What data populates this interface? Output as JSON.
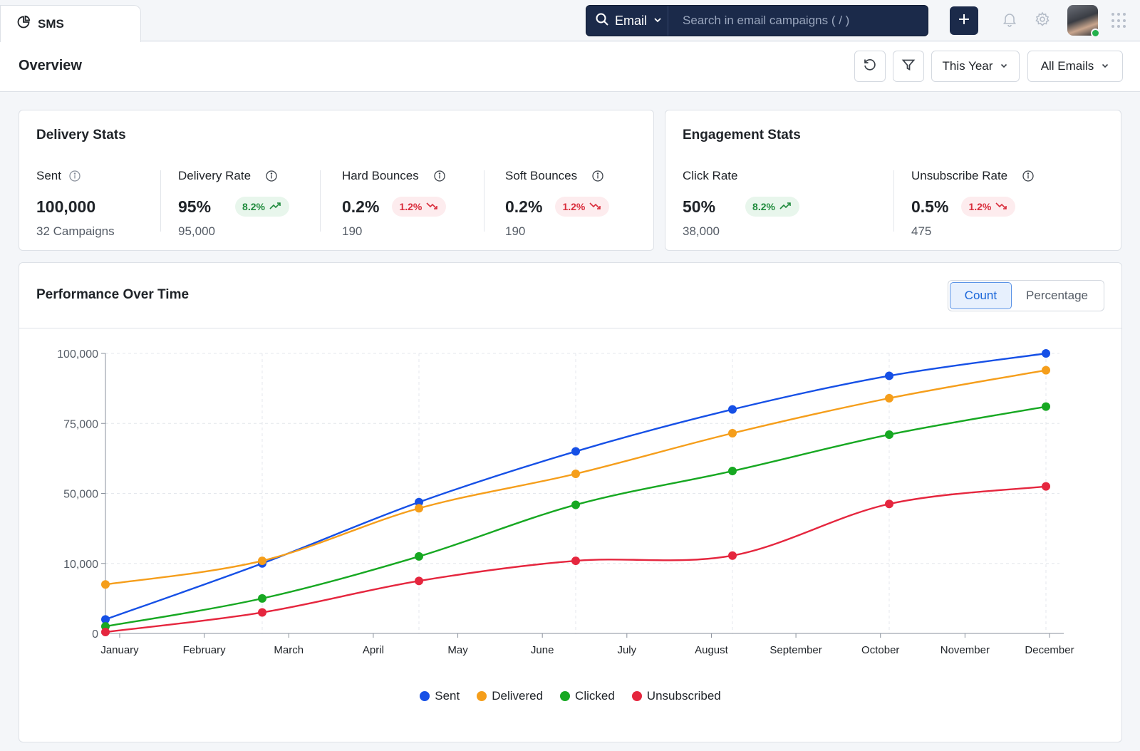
{
  "topbar": {
    "tab_label": "SMS",
    "search_scope": "Email",
    "search_placeholder": "Search in email campaigns ( / )"
  },
  "overview": {
    "title": "Overview",
    "period_filter": "This Year",
    "email_filter": "All Emails"
  },
  "delivery": {
    "title": "Delivery Stats",
    "stats": [
      {
        "label": "Sent",
        "value": "100,000",
        "sub": "32 Campaigns"
      },
      {
        "label": "Delivery Rate",
        "value": "95%",
        "badge": "8.2%",
        "sub": "95,000"
      },
      {
        "label": "Hard Bounces",
        "value": "0.2%",
        "badge": "1.2%",
        "sub": "190"
      },
      {
        "label": "Soft Bounces",
        "value": "0.2%",
        "badge": "1.2%",
        "sub": "190"
      }
    ]
  },
  "engagement": {
    "title": "Engagement Stats",
    "stats": [
      {
        "label": "Click Rate",
        "value": "50%",
        "badge": "8.2%",
        "sub": "38,000"
      },
      {
        "label": "Unsubscribe Rate",
        "value": "0.5%",
        "badge": "1.2%",
        "sub": "475"
      }
    ]
  },
  "performance": {
    "title": "Performance Over Time",
    "toggle_count": "Count",
    "toggle_percentage": "Percentage"
  },
  "colors": {
    "sent": "#1650e6",
    "delivered": "#f59e1b",
    "clicked": "#17a822",
    "unsubscribed": "#e5263e",
    "positive": "#1f8a3c",
    "negative": "#d92d3c"
  },
  "chart_data": {
    "type": "line",
    "title": "",
    "xlabel": "",
    "ylabel": "",
    "x_ticks": [
      "January",
      "February",
      "March",
      "April",
      "May",
      "June",
      "July",
      "August",
      "September",
      "October",
      "November",
      "December"
    ],
    "y_ticks": [
      "0",
      "10,000",
      "50,000",
      "75,000",
      "100,000"
    ],
    "legend_position": "bottom",
    "grid": true,
    "points_x": [
      "January",
      "March",
      "May",
      "July",
      "September",
      "November",
      "December"
    ],
    "series": [
      {
        "name": "Sent",
        "values": [
          2000,
          10000,
          45000,
          65000,
          80000,
          92000,
          100000
        ]
      },
      {
        "name": "Delivered",
        "values": [
          7000,
          11500,
          41500,
          57000,
          71500,
          84000,
          94000
        ]
      },
      {
        "name": "Clicked",
        "values": [
          1000,
          5000,
          14000,
          43500,
          58000,
          71000,
          81000
        ]
      },
      {
        "name": "Unsubscribed",
        "values": [
          200,
          3000,
          7500,
          11500,
          14500,
          44000,
          52500
        ]
      }
    ]
  }
}
